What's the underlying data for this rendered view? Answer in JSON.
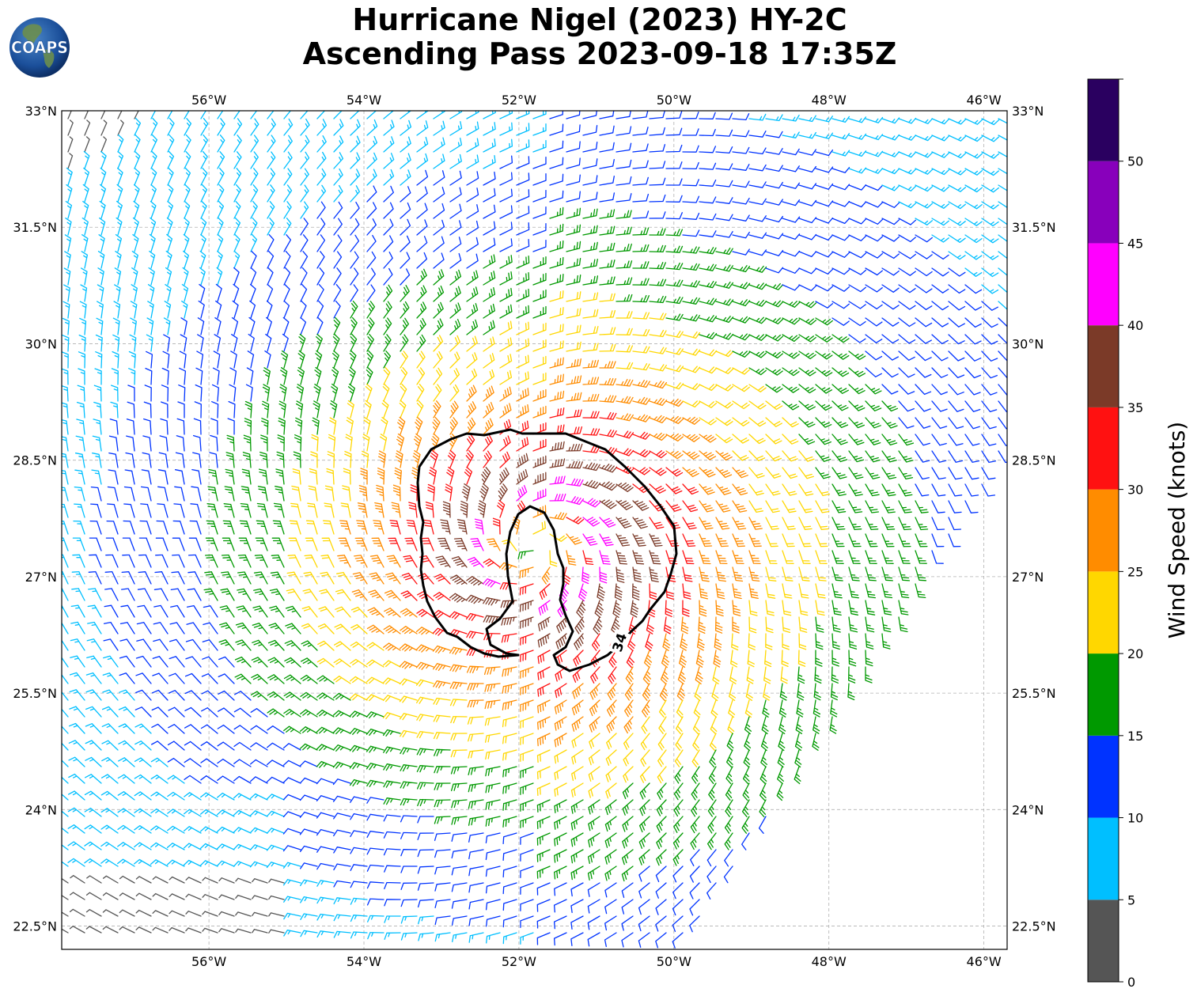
{
  "logo": {
    "text": "COAPS"
  },
  "title": {
    "line1": "Hurricane Nigel (2023) HY-2C",
    "line2": "Ascending Pass 2023-09-18 17:35Z"
  },
  "map": {
    "lon_range": [
      -57.9,
      -45.7
    ],
    "lat_range": [
      22.2,
      33.0
    ],
    "lon_ticks": [
      {
        "value": -56,
        "label": "56°W"
      },
      {
        "value": -54,
        "label": "54°W"
      },
      {
        "value": -52,
        "label": "52°W"
      },
      {
        "value": -50,
        "label": "50°W"
      },
      {
        "value": -48,
        "label": "48°W"
      },
      {
        "value": -46,
        "label": "46°W"
      }
    ],
    "lat_ticks": [
      {
        "value": 33.0,
        "label": "33°N"
      },
      {
        "value": 31.5,
        "label": "31.5°N"
      },
      {
        "value": 30.0,
        "label": "30°N"
      },
      {
        "value": 28.5,
        "label": "28.5°N"
      },
      {
        "value": 27.0,
        "label": "27°N"
      },
      {
        "value": 25.5,
        "label": "25.5°N"
      },
      {
        "value": 24.0,
        "label": "24°N"
      },
      {
        "value": 22.5,
        "label": "22.5°N"
      }
    ],
    "gridlines": true,
    "storm_center": {
      "lon": -51.8,
      "lat": 27.4
    },
    "swath_edge": [
      [
        -49.9,
        22.2
      ],
      [
        -45.7,
        28.6
      ]
    ],
    "contour": {
      "label": "34"
    }
  },
  "colorbar": {
    "title": "Wind Speed (knots)",
    "bins": [
      {
        "from": 0,
        "to": 5,
        "color": "#555555"
      },
      {
        "from": 5,
        "to": 10,
        "color": "#00bfff"
      },
      {
        "from": 10,
        "to": 15,
        "color": "#0033ff"
      },
      {
        "from": 15,
        "to": 20,
        "color": "#009900"
      },
      {
        "from": 20,
        "to": 25,
        "color": "#ffd700"
      },
      {
        "from": 25,
        "to": 30,
        "color": "#ff8c00"
      },
      {
        "from": 30,
        "to": 35,
        "color": "#ff1111"
      },
      {
        "from": 35,
        "to": 40,
        "color": "#7b3a28"
      },
      {
        "from": 40,
        "to": 45,
        "color": "#ff00ff"
      },
      {
        "from": 45,
        "to": 50,
        "color": "#8800bb"
      },
      {
        "from": 50,
        "to": 55,
        "color": "#2a0060"
      }
    ],
    "tick_labels": [
      "0",
      "5",
      "10",
      "15",
      "20",
      "25",
      "30",
      "35",
      "40",
      "45",
      "50"
    ]
  }
}
